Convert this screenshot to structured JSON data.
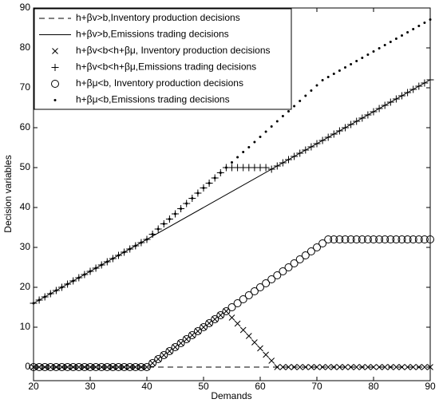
{
  "chart_data": {
    "type": "line",
    "xlabel": "Demands",
    "ylabel": "Decision variables",
    "xlim": [
      20,
      90
    ],
    "ylim": [
      -3.4,
      90
    ],
    "xticks": [
      20,
      30,
      40,
      50,
      60,
      70,
      80,
      90
    ],
    "yticks": [
      0,
      10,
      20,
      30,
      40,
      50,
      60,
      70,
      80,
      90
    ],
    "grid": false,
    "legend": "upper left",
    "x": [
      20,
      21,
      22,
      23,
      24,
      25,
      26,
      27,
      28,
      29,
      30,
      31,
      32,
      33,
      34,
      35,
      36,
      37,
      38,
      39,
      40,
      41,
      42,
      43,
      44,
      45,
      46,
      47,
      48,
      49,
      50,
      51,
      52,
      53,
      54,
      55,
      56,
      57,
      58,
      59,
      60,
      61,
      62,
      63,
      64,
      65,
      66,
      67,
      68,
      69,
      70,
      71,
      72,
      73,
      74,
      75,
      76,
      77,
      78,
      79,
      80,
      81,
      82,
      83,
      84,
      85,
      86,
      87,
      88,
      89,
      90
    ],
    "series": [
      {
        "name": "h+βv>b,Inventory production decisions",
        "color": "#000000",
        "linestyle": "dashed",
        "marker": "none",
        "x": [
          20,
          90
        ],
        "values": [
          0,
          0
        ]
      },
      {
        "name": "h+βv>b,Emissions trading decisions",
        "color": "#000000",
        "linestyle": "solid",
        "marker": "none",
        "x": [
          20,
          90
        ],
        "values": [
          16,
          72
        ]
      },
      {
        "name": "h+βv<b<h+βμ, Inventory production decisions",
        "color": "#000000",
        "linestyle": "none",
        "marker": "x",
        "values": [
          0,
          0,
          0,
          0,
          0,
          0,
          0,
          0,
          0,
          0,
          0,
          0,
          0,
          0,
          0,
          0,
          0,
          0,
          0,
          0,
          0,
          1,
          2,
          3,
          4,
          5,
          6,
          7,
          8,
          9,
          10,
          11,
          12,
          13,
          14,
          12.4,
          10.9,
          9.3,
          7.8,
          6.2,
          4.7,
          3.1,
          1.6,
          0,
          0,
          0,
          0,
          0,
          0,
          0,
          0,
          0,
          0,
          0,
          0,
          0,
          0,
          0,
          0,
          0,
          0,
          0,
          0,
          0,
          0,
          0,
          0,
          0,
          0,
          0,
          0
        ]
      },
      {
        "name": "h+βv<b<h+βμ,Emissions trading decisions",
        "color": "#000000",
        "linestyle": "none",
        "marker": "+",
        "values": [
          16,
          16.8,
          17.6,
          18.4,
          19.2,
          20,
          20.8,
          21.6,
          22.4,
          23.2,
          24,
          24.8,
          25.6,
          26.4,
          27.2,
          28,
          28.8,
          29.6,
          30.4,
          31.2,
          32,
          33.3,
          34.6,
          35.9,
          37.1,
          38.4,
          39.7,
          41,
          42.3,
          43.6,
          44.9,
          46.1,
          47.4,
          48.7,
          50,
          50,
          50,
          50,
          50,
          50,
          50,
          50,
          49.6,
          50.4,
          51.2,
          52,
          52.8,
          53.6,
          54.4,
          55.2,
          56,
          56.8,
          57.6,
          58.4,
          59.2,
          60,
          60.8,
          61.6,
          62.4,
          63.2,
          64,
          64.8,
          65.6,
          66.4,
          67.2,
          68,
          68.8,
          69.6,
          70.4,
          71.2,
          72
        ]
      },
      {
        "name": "h+βμ<b, Inventory production decisions",
        "color": "#000000",
        "linestyle": "none",
        "marker": "o",
        "values": [
          0,
          0,
          0,
          0,
          0,
          0,
          0,
          0,
          0,
          0,
          0,
          0,
          0,
          0,
          0,
          0,
          0,
          0,
          0,
          0,
          0,
          1,
          2,
          3,
          4,
          5,
          6,
          7,
          8,
          9,
          10,
          11,
          12,
          13,
          14,
          15,
          16,
          17,
          18,
          19,
          20,
          21,
          22,
          23,
          24,
          25,
          26,
          27,
          28,
          29,
          30,
          31,
          32,
          32,
          32,
          32,
          32,
          32,
          32,
          32,
          32,
          32,
          32,
          32,
          32,
          32,
          32,
          32,
          32,
          32,
          32
        ]
      },
      {
        "name": "h+βμ<b,Emissions trading decisions",
        "color": "#000000",
        "linestyle": "none",
        "marker": ".",
        "values": [
          16,
          16.8,
          17.6,
          18.4,
          19.2,
          20,
          20.8,
          21.6,
          22.4,
          23.2,
          24,
          24.8,
          25.6,
          26.4,
          27.2,
          28,
          28.8,
          29.6,
          30.4,
          31.2,
          32,
          33.3,
          34.6,
          35.9,
          37.1,
          38.4,
          39.7,
          41,
          42.3,
          43.6,
          44.9,
          46.1,
          47.4,
          48.7,
          50,
          51.3,
          52.6,
          53.9,
          55.1,
          56.4,
          57.7,
          59,
          60.3,
          61.6,
          62.9,
          64.1,
          65.4,
          66.7,
          68,
          69.3,
          70.6,
          71.9,
          72.7,
          73.5,
          74.3,
          75.1,
          75.9,
          76.7,
          77.5,
          78.3,
          79.1,
          79.9,
          80.7,
          81.5,
          82.3,
          83.1,
          83.9,
          84.7,
          85.5,
          86.3,
          87.1
        ]
      }
    ]
  }
}
